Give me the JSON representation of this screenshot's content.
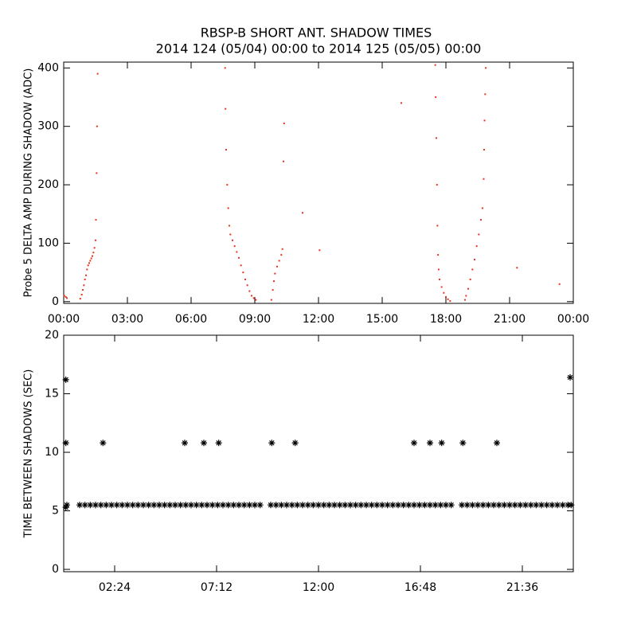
{
  "chart_data": [
    {
      "type": "scatter",
      "title": "RBSP-B SHORT ANT. SHADOW TIMES",
      "subtitle": "2014 124 (05/04) 00:00 to 2014 125 (05/05) 00:00",
      "y_label": "Probe 5 DELTA AMP DURING SHADOW (ADC)",
      "color": "#e8341c",
      "marker": "dot",
      "xlim": [
        0,
        24
      ],
      "ylim": [
        -3,
        410
      ],
      "xticks": [
        {
          "value": 0,
          "label": "00:00"
        },
        {
          "value": 3,
          "label": "03:00"
        },
        {
          "value": 6,
          "label": "06:00"
        },
        {
          "value": 9,
          "label": "09:00"
        },
        {
          "value": 12,
          "label": "12:00"
        },
        {
          "value": 15,
          "label": "15:00"
        },
        {
          "value": 18,
          "label": "18:00"
        },
        {
          "value": 21,
          "label": "21:00"
        },
        {
          "value": 24,
          "label": "00:00"
        }
      ],
      "yticks": [
        0,
        100,
        200,
        300,
        400
      ],
      "x": [
        0.03,
        0.1,
        0.15,
        0.78,
        0.85,
        0.9,
        0.95,
        1.0,
        1.05,
        1.1,
        1.15,
        1.2,
        1.25,
        1.3,
        1.35,
        1.4,
        1.45,
        1.5,
        1.52,
        1.55,
        1.57,
        1.6,
        7.6,
        7.62,
        7.65,
        7.7,
        7.75,
        7.8,
        7.85,
        7.95,
        8.05,
        8.15,
        8.25,
        8.35,
        8.45,
        8.55,
        8.65,
        8.75,
        8.85,
        8.95,
        9.05,
        9.78,
        9.85,
        9.9,
        9.95,
        10.05,
        10.15,
        10.25,
        10.3,
        10.35,
        10.38,
        11.25,
        12.05,
        15.9,
        21.35,
        23.35,
        17.5,
        17.52,
        17.55,
        17.58,
        17.6,
        17.63,
        17.66,
        17.7,
        17.8,
        17.9,
        18.0,
        18.1,
        18.2,
        18.9,
        18.95,
        19.05,
        19.15,
        19.25,
        19.35,
        19.45,
        19.55,
        19.65,
        19.72,
        19.78,
        19.8,
        19.82,
        19.85,
        19.88
      ],
      "values": [
        10,
        8,
        6,
        5,
        12,
        20,
        28,
        38,
        45,
        55,
        62,
        66,
        70,
        74,
        78,
        84,
        92,
        105,
        140,
        220,
        300,
        390,
        400,
        330,
        260,
        200,
        160,
        130,
        115,
        105,
        95,
        85,
        75,
        62,
        50,
        38,
        28,
        18,
        10,
        6,
        3,
        3,
        20,
        35,
        48,
        60,
        70,
        80,
        90,
        240,
        305,
        152,
        88,
        340,
        58,
        30,
        405,
        350,
        280,
        200,
        130,
        80,
        55,
        38,
        25,
        15,
        8,
        4,
        1,
        3,
        10,
        22,
        38,
        55,
        72,
        95,
        115,
        140,
        160,
        210,
        260,
        310,
        355,
        400
      ]
    },
    {
      "type": "scatter",
      "y_label": "TIME BETWEEN SHADOWS (SEC)",
      "color": "#000000",
      "marker": "asterisk",
      "xlim": [
        0,
        24
      ],
      "ylim": [
        -0.2,
        20
      ],
      "xticks": [
        {
          "value": 2.4,
          "label": "02:24"
        },
        {
          "value": 7.2,
          "label": "07:12"
        },
        {
          "value": 12,
          "label": "12:00"
        },
        {
          "value": 16.8,
          "label": "16:48"
        },
        {
          "value": 21.6,
          "label": "21:36"
        }
      ],
      "yticks": [
        0,
        5,
        10,
        15,
        20
      ],
      "x": [
        0.1,
        0.1,
        0.15,
        0.1,
        1.85,
        5.7,
        6.6,
        7.3,
        9.8,
        10.9,
        16.5,
        17.25,
        17.8,
        18.8,
        20.4,
        23.85,
        0.75,
        1,
        1.25,
        1.5,
        1.75,
        2,
        2.25,
        2.5,
        2.75,
        3,
        3.25,
        3.5,
        3.75,
        4,
        4.25,
        4.5,
        4.75,
        5,
        5.25,
        5.5,
        5.75,
        6,
        6.25,
        6.5,
        6.75,
        7,
        7.25,
        7.5,
        7.75,
        8,
        8.25,
        8.5,
        8.75,
        9,
        9.25,
        9.75,
        10,
        10.25,
        10.5,
        10.75,
        11,
        11.25,
        11.5,
        11.75,
        12,
        12.25,
        12.5,
        12.75,
        13,
        13.25,
        13.5,
        13.75,
        14,
        14.25,
        14.5,
        14.75,
        15,
        15.25,
        15.5,
        15.75,
        16,
        16.25,
        16.5,
        16.75,
        17,
        17.25,
        17.5,
        17.75,
        18,
        18.25,
        18.75,
        19,
        19.25,
        19.5,
        19.75,
        20,
        20.25,
        20.5,
        20.75,
        21,
        21.25,
        21.5,
        21.75,
        22,
        22.25,
        22.5,
        22.75,
        23,
        23.25,
        23.5,
        23.75,
        23.9
      ],
      "values": [
        16.2,
        10.8,
        5.5,
        5.3,
        10.8,
        10.8,
        10.8,
        10.8,
        10.8,
        10.8,
        10.8,
        10.8,
        10.8,
        10.8,
        10.8,
        16.4,
        5.5,
        5.5,
        5.5,
        5.5,
        5.5,
        5.5,
        5.5,
        5.5,
        5.5,
        5.5,
        5.5,
        5.5,
        5.5,
        5.5,
        5.5,
        5.5,
        5.5,
        5.5,
        5.5,
        5.5,
        5.5,
        5.5,
        5.5,
        5.5,
        5.5,
        5.5,
        5.5,
        5.5,
        5.5,
        5.5,
        5.5,
        5.5,
        5.5,
        5.5,
        5.5,
        5.5,
        5.5,
        5.5,
        5.5,
        5.5,
        5.5,
        5.5,
        5.5,
        5.5,
        5.5,
        5.5,
        5.5,
        5.5,
        5.5,
        5.5,
        5.5,
        5.5,
        5.5,
        5.5,
        5.5,
        5.5,
        5.5,
        5.5,
        5.5,
        5.5,
        5.5,
        5.5,
        5.5,
        5.5,
        5.5,
        5.5,
        5.5,
        5.5,
        5.5,
        5.5,
        5.5,
        5.5,
        5.5,
        5.5,
        5.5,
        5.5,
        5.5,
        5.5,
        5.5,
        5.5,
        5.5,
        5.5,
        5.5,
        5.5,
        5.5,
        5.5,
        5.5,
        5.5,
        5.5,
        5.5,
        5.5,
        5.5
      ]
    }
  ]
}
